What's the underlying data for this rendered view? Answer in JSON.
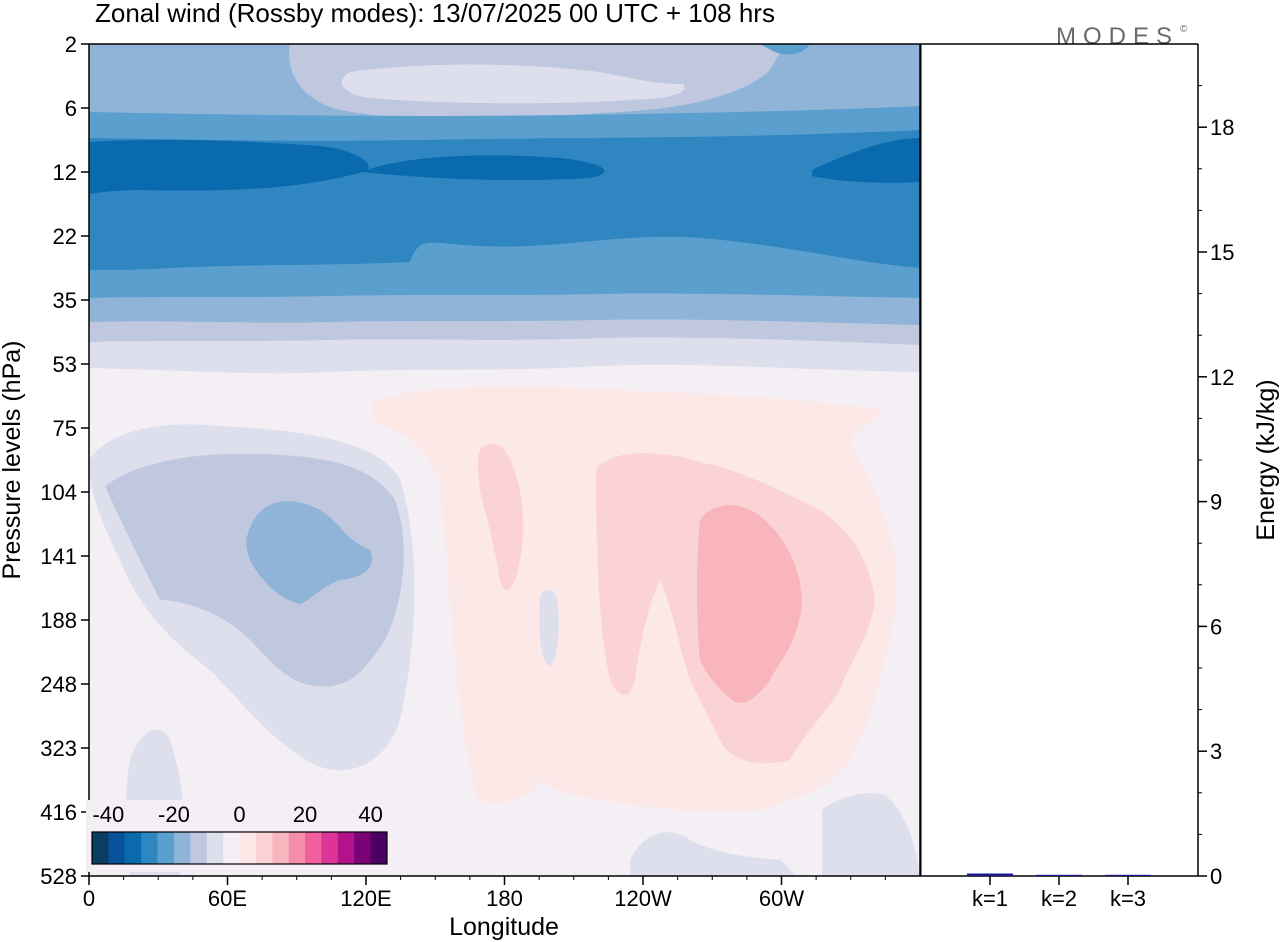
{
  "title": "Zonal wind (Rossby modes):  13/07/2025  00 UTC  + 108 hrs",
  "brand": "MODES",
  "brand_mark": "©",
  "chart_data": [
    {
      "type": "heatmap",
      "xlabel": "Longitude",
      "ylabel": "Pressure levels (hPa)",
      "x_ticks": [
        "0",
        "60E",
        "120E",
        "180",
        "120W",
        "60W"
      ],
      "x_tick_lon": [
        0,
        60,
        120,
        180,
        240,
        300
      ],
      "xlim": [
        0,
        360
      ],
      "y_ticks": [
        "2",
        "6",
        "12",
        "22",
        "35",
        "53",
        "75",
        "104",
        "141",
        "188",
        "248",
        "323",
        "416",
        "528"
      ],
      "y_axis": "pressure levels top to bottom, evenly spaced",
      "colorbar": {
        "ticks": [
          "-40",
          "-20",
          "0",
          "20",
          "40"
        ],
        "levels": [
          -45,
          -40,
          -35,
          -30,
          -25,
          -20,
          -15,
          -10,
          -5,
          0,
          5,
          10,
          15,
          20,
          25,
          30,
          35,
          40,
          45
        ],
        "colors": [
          "#0a3d62",
          "#08529c",
          "#0a6aae",
          "#2f86c1",
          "#5a9fcd",
          "#8fb4d8",
          "#c0c8e0",
          "#dedfec",
          "#f4eef5",
          "#fde8e8",
          "#fbd3d5",
          "#f8b5bd",
          "#f58ca9",
          "#ef609c",
          "#dd3497",
          "#b0138a",
          "#7a0177",
          "#4d0060"
        ]
      },
      "colors": {
        "background": "#f4eef5",
        "strong_easterly": "#0a6aae",
        "westerly_max": "#f8b5bd"
      }
    },
    {
      "type": "bar",
      "categories": [
        "k=1",
        "k=2",
        "k=3"
      ],
      "values": [
        0.06,
        0.02,
        0.02
      ],
      "ylabel": "Energy (kJ/kg)",
      "ylim": [
        0,
        20
      ],
      "y_ticks": [
        0,
        3,
        6,
        9,
        12,
        15,
        18
      ],
      "bar_color": "#1a1a8c"
    }
  ]
}
